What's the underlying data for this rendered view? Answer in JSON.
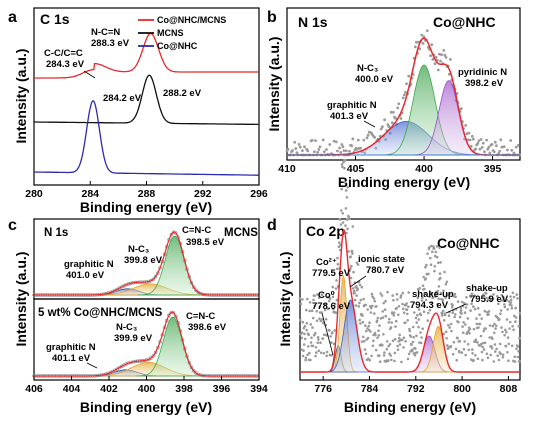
{
  "chart_data": [
    {
      "id": "a",
      "type": "line",
      "panel_letter": "a",
      "title": "C 1s",
      "xlabel": "Binding energy (eV)",
      "ylabel": "Intensity (a.u.)",
      "xlim": [
        280,
        296
      ],
      "xticks": [
        "280",
        "284",
        "288",
        "292",
        "296"
      ],
      "legend": [
        "Co@NHC/MCNS",
        "MCNS",
        "Co@NHC"
      ],
      "legend_position": "top-right",
      "series": [
        {
          "name": "Co@NHC/MCNS",
          "color": "#e8292d",
          "peaks": [
            {
              "center": 284.3,
              "height": 0.12,
              "width": 0.8
            },
            {
              "center": 288.3,
              "height": 0.55,
              "width": 0.55
            }
          ]
        },
        {
          "name": "MCNS",
          "color": "#111111",
          "peaks": [
            {
              "center": 288.2,
              "height": 1.0,
              "width": 0.5
            }
          ]
        },
        {
          "name": "Co@NHC",
          "color": "#2b2bb0",
          "peaks": [
            {
              "center": 284.2,
              "height": 1.0,
              "width": 0.45
            }
          ]
        }
      ],
      "annotations": [
        {
          "text": "N-C=N",
          "text2": "288.3 eV"
        },
        {
          "text": "C-C/C=C",
          "text2": "284.3 eV"
        },
        {
          "text": "284.2 eV"
        },
        {
          "text": "288.2 eV"
        }
      ]
    },
    {
      "id": "b",
      "type": "line",
      "panel_letter": "b",
      "title": "N 1s",
      "sample_label": "Co@NHC",
      "xlabel": "Binding energy (eV)",
      "ylabel": "Intensity (a.u.)",
      "xlim": [
        410,
        393
      ],
      "xticks": [
        "410",
        "405",
        "400",
        "395"
      ],
      "components": [
        {
          "center": 401.3,
          "height": 0.28,
          "width": 1.6,
          "color": "#3a5fd0"
        },
        {
          "center": 400.0,
          "height": 0.75,
          "width": 0.8,
          "color": "#3aa84a"
        },
        {
          "center": 398.2,
          "height": 0.62,
          "width": 0.7,
          "color": "#9b4fc8"
        }
      ],
      "annotations": [
        {
          "text": "graphitic N",
          "text2": "401.3 eV"
        },
        {
          "text": "N-C₃",
          "text2": "400.0 eV"
        },
        {
          "text": "pyridinic N",
          "text2": "398.2 eV"
        }
      ]
    },
    {
      "id": "c",
      "type": "line",
      "panel_letter": "c",
      "xlabel": "Binding energy (eV)",
      "ylabel": "Intensity (a.u.)",
      "xlim": [
        406,
        394
      ],
      "xticks": [
        "406",
        "404",
        "402",
        "400",
        "398",
        "396",
        "394"
      ],
      "subplots": [
        {
          "title": "N 1s",
          "sample_label": "MCNS",
          "components": [
            {
              "center": 401.0,
              "height": 0.1,
              "width": 0.6,
              "color": "#2f4fa8"
            },
            {
              "center": 399.8,
              "height": 0.18,
              "width": 0.9,
              "color": "#e3a629"
            },
            {
              "center": 398.5,
              "height": 0.95,
              "width": 0.5,
              "color": "#3aa84a"
            }
          ],
          "annotations": [
            {
              "text": "graphitic N",
              "text2": "401.0 eV"
            },
            {
              "text": "N-C₃",
              "text2": "399.8 eV"
            },
            {
              "text": "C=N-C",
              "text2": "398.5 eV"
            }
          ]
        },
        {
          "title": "5 wt% Co@NHC/MCNS",
          "components": [
            {
              "center": 401.1,
              "height": 0.1,
              "width": 0.6,
              "color": "#2f4fa8"
            },
            {
              "center": 399.9,
              "height": 0.22,
              "width": 0.9,
              "color": "#e3a629"
            },
            {
              "center": 398.6,
              "height": 0.95,
              "width": 0.5,
              "color": "#3aa84a"
            }
          ],
          "annotations": [
            {
              "text": "graphitic N",
              "text2": "401.1 eV"
            },
            {
              "text": "N-C₃",
              "text2": "399.9 eV"
            },
            {
              "text": "C=N-C",
              "text2": "398.6 eV"
            }
          ]
        }
      ]
    },
    {
      "id": "d",
      "type": "line",
      "panel_letter": "d",
      "title": "Co 2p",
      "sample_label": "Co@NHC",
      "xlabel": "Binding energy (eV)",
      "ylabel": "Intensity (a.u.)",
      "xlim": [
        772,
        810
      ],
      "xticks": [
        "776",
        "784",
        "792",
        "800",
        "808"
      ],
      "components": [
        {
          "center": 778.6,
          "height": 0.22,
          "width": 0.5,
          "color": "#555555"
        },
        {
          "center": 779.5,
          "height": 0.8,
          "width": 0.6,
          "color": "#e3a629"
        },
        {
          "center": 780.7,
          "height": 0.6,
          "width": 1.1,
          "color": "#3a5fd0"
        },
        {
          "center": 794.3,
          "height": 0.3,
          "width": 1.0,
          "color": "#9b4fc8"
        },
        {
          "center": 795.9,
          "height": 0.38,
          "width": 0.9,
          "color": "#e3a629"
        }
      ],
      "annotations": [
        {
          "text": "Co²⁺",
          "text2": "779.5 eV"
        },
        {
          "text": "ionic state",
          "text2": "780.7 eV"
        },
        {
          "text": "Co⁰",
          "text2": "778.6 eV"
        },
        {
          "text": "shake-up",
          "text2": "794.3 eV"
        },
        {
          "text": "shake-up",
          "text2": "795.9 eV"
        }
      ]
    }
  ]
}
